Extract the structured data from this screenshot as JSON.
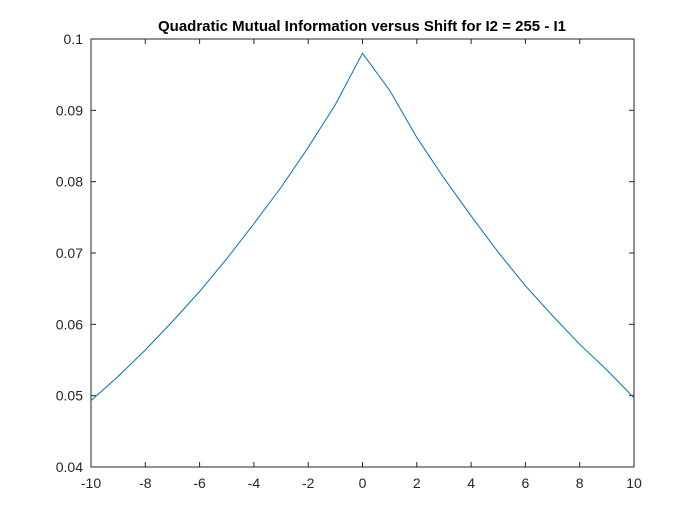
{
  "chart_data": {
    "type": "line",
    "title": "Quadratic Mutual Information versus Shift for I2 = 255 - I1",
    "xlabel": "",
    "ylabel": "",
    "xlim": [
      -10,
      10
    ],
    "ylim": [
      0.04,
      0.1
    ],
    "x_ticks": [
      -10,
      -8,
      -6,
      -4,
      -2,
      0,
      2,
      4,
      6,
      8,
      10
    ],
    "y_ticks": [
      0.04,
      0.05,
      0.06,
      0.07,
      0.08,
      0.09,
      0.1
    ],
    "x_tick_labels": [
      "-10",
      "-8",
      "-6",
      "-4",
      "-2",
      "0",
      "2",
      "4",
      "6",
      "8",
      "10"
    ],
    "y_tick_labels": [
      "0.04",
      "0.05",
      "0.06",
      "0.07",
      "0.08",
      "0.09",
      "0.1"
    ],
    "grid": false,
    "series_color": "#0072BD",
    "series": [
      {
        "x": [
          -10,
          -9,
          -8,
          -7,
          -6,
          -5,
          -4,
          -3,
          -2,
          -1,
          0,
          1,
          2,
          3,
          4,
          5,
          6,
          7,
          8,
          9,
          10
        ],
        "values": [
          0.0493,
          0.0527,
          0.0564,
          0.0604,
          0.0646,
          0.0692,
          0.0741,
          0.0792,
          0.0848,
          0.0908,
          0.098,
          0.0928,
          0.0862,
          0.0805,
          0.0752,
          0.0701,
          0.0654,
          0.0612,
          0.0572,
          0.0536,
          0.0497
        ]
      }
    ]
  }
}
